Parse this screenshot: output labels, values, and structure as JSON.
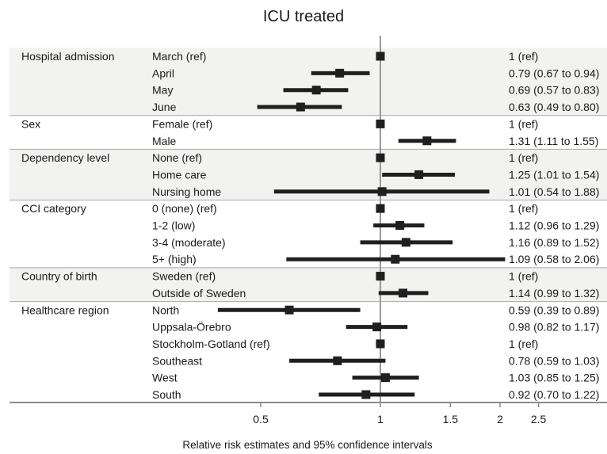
{
  "chart_data": {
    "type": "forest",
    "title": "ICU treated",
    "xlabel": "Relative risk estimates and 95% confidence intervals",
    "x_scale": "log",
    "xlim": [
      0.35,
      3.7
    ],
    "reference_line": 1,
    "x_ticks": [
      {
        "value": 0.5,
        "label": "0.5"
      },
      {
        "value": 1,
        "label": "1"
      },
      {
        "value": 1.5,
        "label": "1.5"
      },
      {
        "value": 2,
        "label": "2"
      },
      {
        "value": 2.5,
        "label": "2.5"
      }
    ],
    "groups": [
      {
        "name": "Hospital admission",
        "shaded": true,
        "rows": [
          {
            "label": "March (ref)",
            "est": 1,
            "lo": 1,
            "hi": 1,
            "ci_text": "1 (ref)"
          },
          {
            "label": "April",
            "est": 0.79,
            "lo": 0.67,
            "hi": 0.94,
            "ci_text": "0.79 (0.67 to 0.94)"
          },
          {
            "label": "May",
            "est": 0.69,
            "lo": 0.57,
            "hi": 0.83,
            "ci_text": "0.69 (0.57 to 0.83)"
          },
          {
            "label": "June",
            "est": 0.63,
            "lo": 0.49,
            "hi": 0.8,
            "ci_text": "0.63 (0.49 to 0.80)"
          }
        ]
      },
      {
        "name": "Sex",
        "shaded": false,
        "rows": [
          {
            "label": "Female (ref)",
            "est": 1,
            "lo": 1,
            "hi": 1,
            "ci_text": "1 (ref)"
          },
          {
            "label": "Male",
            "est": 1.31,
            "lo": 1.11,
            "hi": 1.55,
            "ci_text": "1.31 (1.11 to 1.55)"
          }
        ]
      },
      {
        "name": "Dependency level",
        "shaded": true,
        "rows": [
          {
            "label": "None (ref)",
            "est": 1,
            "lo": 1,
            "hi": 1,
            "ci_text": "1 (ref)"
          },
          {
            "label": "Home care",
            "est": 1.25,
            "lo": 1.01,
            "hi": 1.54,
            "ci_text": "1.25 (1.01 to 1.54)"
          },
          {
            "label": "Nursing home",
            "est": 1.01,
            "lo": 0.54,
            "hi": 1.88,
            "ci_text": "1.01 (0.54 to 1.88)"
          }
        ]
      },
      {
        "name": "CCI category",
        "shaded": false,
        "rows": [
          {
            "label": "0 (none) (ref)",
            "est": 1,
            "lo": 1,
            "hi": 1,
            "ci_text": "1 (ref)"
          },
          {
            "label": "1-2 (low)",
            "est": 1.12,
            "lo": 0.96,
            "hi": 1.29,
            "ci_text": "1.12 (0.96 to 1.29)"
          },
          {
            "label": "3-4 (moderate)",
            "est": 1.16,
            "lo": 0.89,
            "hi": 1.52,
            "ci_text": "1.16 (0.89 to 1.52)"
          },
          {
            "label": "5+ (high)",
            "est": 1.09,
            "lo": 0.58,
            "hi": 2.06,
            "ci_text": "1.09 (0.58 to 2.06)"
          }
        ]
      },
      {
        "name": "Country of birth",
        "shaded": true,
        "rows": [
          {
            "label": "Sweden (ref)",
            "est": 1,
            "lo": 1,
            "hi": 1,
            "ci_text": "1 (ref)"
          },
          {
            "label": "Outside of Sweden",
            "est": 1.14,
            "lo": 0.99,
            "hi": 1.32,
            "ci_text": "1.14 (0.99 to 1.32)"
          }
        ]
      },
      {
        "name": "Healthcare region",
        "shaded": false,
        "rows": [
          {
            "label": "North",
            "est": 0.59,
            "lo": 0.39,
            "hi": 0.89,
            "ci_text": "0.59 (0.39 to 0.89)"
          },
          {
            "label": "Uppsala-Örebro",
            "est": 0.98,
            "lo": 0.82,
            "hi": 1.17,
            "ci_text": "0.98 (0.82 to 1.17)"
          },
          {
            "label": "Stockholm-Gotland (ref)",
            "est": 1,
            "lo": 1,
            "hi": 1,
            "ci_text": "1 (ref)"
          },
          {
            "label": "Southeast",
            "est": 0.78,
            "lo": 0.59,
            "hi": 1.03,
            "ci_text": "0.78 (0.59 to 1.03)"
          },
          {
            "label": "West",
            "est": 1.03,
            "lo": 0.85,
            "hi": 1.25,
            "ci_text": "1.03 (0.85 to 1.25)"
          },
          {
            "label": "South",
            "est": 0.92,
            "lo": 0.7,
            "hi": 1.22,
            "ci_text": "0.92 (0.70 to 1.22)"
          }
        ]
      }
    ],
    "colors": {
      "band": "#f2f2f0",
      "marker": "#1f1f1f",
      "ref_line": "#9a9a9a",
      "separator": "#a8a8a8",
      "axis": "#8a8a8a"
    }
  }
}
